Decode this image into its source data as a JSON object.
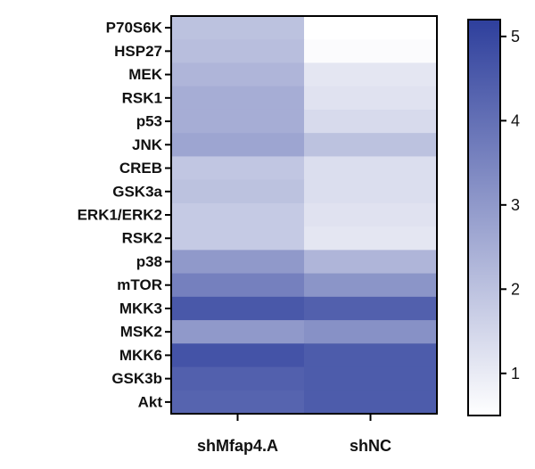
{
  "chart_data": {
    "type": "heatmap",
    "rows": [
      "P70S6K",
      "HSP27",
      "MEK",
      "RSK1",
      "p53",
      "JNK",
      "CREB",
      "GSK3a",
      "ERK1/ERK2",
      "RSK2",
      "p38",
      "mTOR",
      "MKK3",
      "MSK2",
      "MKK6",
      "GSK3b",
      "Akt"
    ],
    "columns": [
      "shMfap4.A",
      "shNC"
    ],
    "values": [
      [
        2.0,
        0.5
      ],
      [
        2.1,
        0.6
      ],
      [
        2.3,
        1.1
      ],
      [
        2.5,
        1.2
      ],
      [
        2.5,
        1.4
      ],
      [
        2.7,
        2.0
      ],
      [
        1.9,
        1.3
      ],
      [
        2.0,
        1.3
      ],
      [
        1.8,
        1.2
      ],
      [
        1.8,
        1.1
      ],
      [
        3.0,
        2.3
      ],
      [
        3.6,
        3.1
      ],
      [
        4.6,
        4.4
      ],
      [
        3.0,
        3.2
      ],
      [
        4.7,
        4.5
      ],
      [
        4.4,
        4.5
      ],
      [
        4.3,
        4.5
      ]
    ],
    "colorbar": {
      "min": 0.5,
      "max": 5.2,
      "ticks": [
        1,
        2,
        3,
        4,
        5
      ],
      "color_low": "#ffffff",
      "color_high": "#2e3f9c"
    },
    "title": "",
    "xlabel": "",
    "ylabel": ""
  }
}
